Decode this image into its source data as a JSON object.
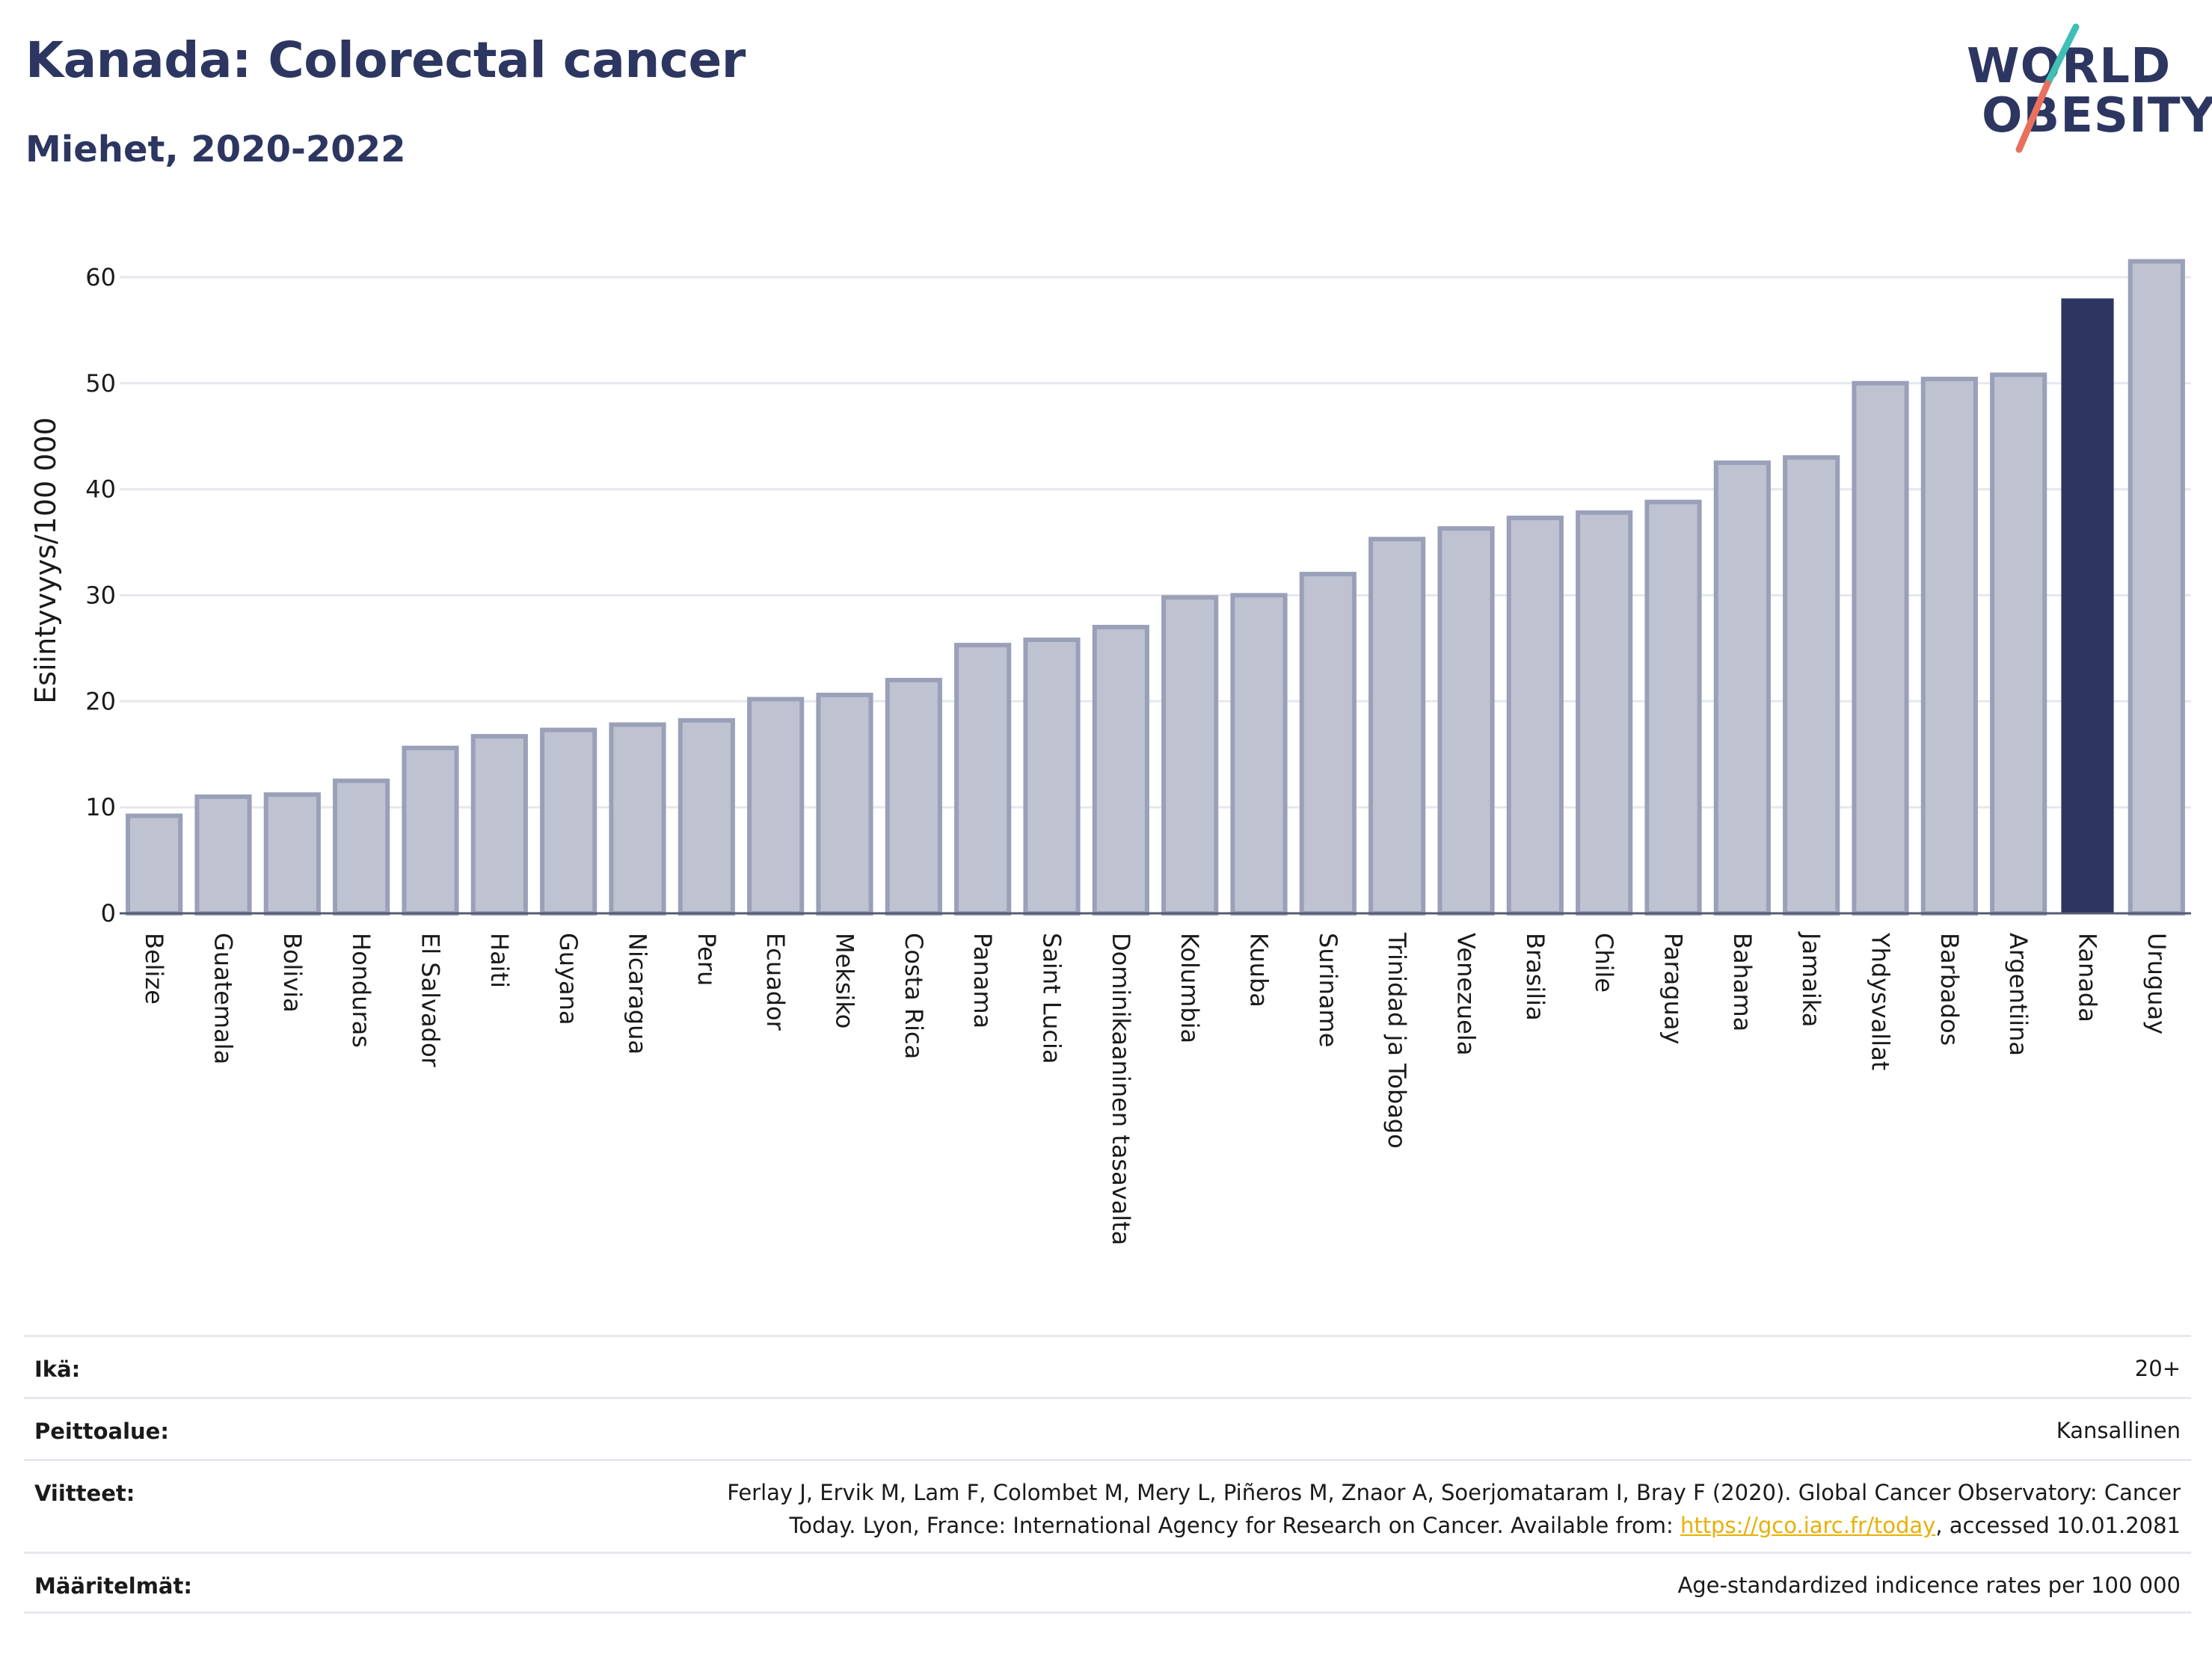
{
  "header": {
    "title": "Kanada: Colorectal cancer",
    "subtitle": "Miehet, 2020-2022"
  },
  "logo": {
    "line1": "WORLD",
    "line2": "OBESITY",
    "colors": {
      "teal": "#3fbfb5",
      "coral": "#e8705c",
      "navy": "#2c3660"
    }
  },
  "chart_data": {
    "type": "bar",
    "title": "Kanada: Colorectal cancer",
    "subtitle": "Miehet, 2020-2022",
    "ylabel": "Esiintyvyys/100 000",
    "xlabel": "",
    "ylim": [
      0,
      65
    ],
    "yticks": [
      0,
      10,
      20,
      30,
      40,
      50,
      60
    ],
    "grid": true,
    "highlight": "Kanada",
    "colors": {
      "bar": "#bfc3d1",
      "bar_edge": "#9aa0b8",
      "highlight": "#2c3660",
      "grid": "#e6e8ee"
    },
    "categories": [
      "Belize",
      "Guatemala",
      "Bolivia",
      "Honduras",
      "El Salvador",
      "Haiti",
      "Guyana",
      "Nicaragua",
      "Peru",
      "Ecuador",
      "Meksiko",
      "Costa Rica",
      "Panama",
      "Saint Lucia",
      "Dominikaaninen tasavalta",
      "Kolumbia",
      "Kuuba",
      "Suriname",
      "Trinidad ja Tobago",
      "Venezuela",
      "Brasilia",
      "Chile",
      "Paraguay",
      "Bahama",
      "Jamaika",
      "Yhdysvallat",
      "Barbados",
      "Argentiina",
      "Kanada",
      "Uruguay"
    ],
    "values": [
      9.2,
      11.0,
      11.2,
      12.5,
      15.6,
      16.7,
      17.3,
      17.8,
      18.2,
      20.2,
      20.6,
      22.0,
      25.3,
      25.8,
      27.0,
      29.8,
      30.0,
      32.0,
      35.3,
      36.3,
      37.3,
      37.8,
      38.8,
      42.5,
      43.0,
      50.0,
      50.4,
      50.8,
      58.0,
      61.5
    ]
  },
  "footer": {
    "rows": [
      {
        "key": "Ikä:",
        "value": "20+"
      },
      {
        "key": "Peittoalue:",
        "value": "Kansallinen"
      },
      {
        "key": "Viitteet:",
        "value_line1": "Ferlay J, Ervik M, Lam F, Colombet M, Mery L, Piñeros M, Znaor A, Soerjomataram I, Bray F (2020). Global Cancer Observatory: Cancer",
        "value_line2_pre": "Today. Lyon, France: International Agency for Research on Cancer. Available from: ",
        "link": "https://gco.iarc.fr/today",
        "value_line2_post": ", accessed 10.01.2081"
      },
      {
        "key": "Määritelmät:",
        "value": "Age-standardized indicence rates per 100 000"
      }
    ]
  }
}
